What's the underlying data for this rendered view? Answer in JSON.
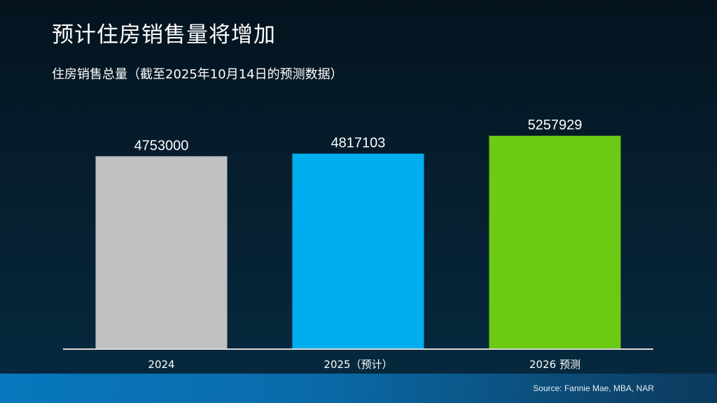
{
  "title": "预计住房销售量将增加",
  "subtitle": "住房销售总量（截至2025年10月14日的预测数据）",
  "source": "Source: Fannie Mae, MBA, NAR",
  "chart_data": {
    "type": "bar",
    "categories": [
      "2024",
      "2025（预计）",
      "2026 预测"
    ],
    "values": [
      4753000,
      4817103,
      5257929
    ],
    "data_labels": [
      "4753000",
      "4817103",
      "5257929"
    ],
    "colors": [
      "#bfc1c2",
      "#00aeef",
      "#6cc914"
    ],
    "ylim": [
      0,
      6000000
    ],
    "grid": false,
    "legend": "none"
  }
}
